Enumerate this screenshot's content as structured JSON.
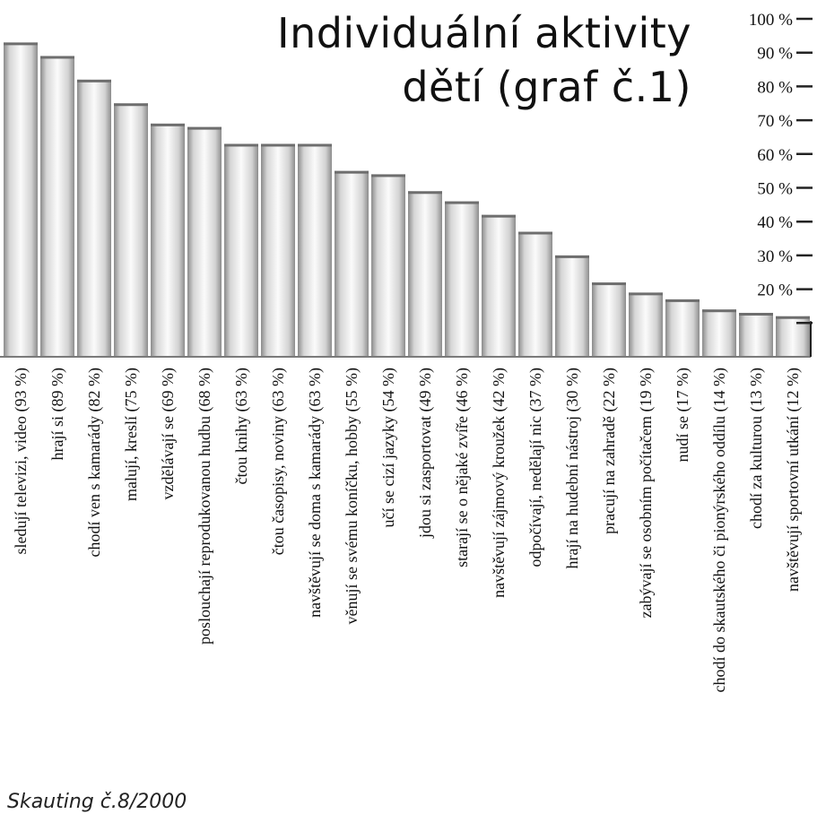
{
  "chart_data": {
    "type": "bar",
    "title_lines": [
      "Individuální aktivity",
      "dětí (graf č.1)"
    ],
    "source": "Skauting č.8/2000",
    "ylim": [
      0,
      100
    ],
    "y_ticks": [
      {
        "value": 100,
        "label": "100 %"
      },
      {
        "value": 90,
        "label": "90 %"
      },
      {
        "value": 80,
        "label": "80 %"
      },
      {
        "value": 70,
        "label": "70 %"
      },
      {
        "value": 60,
        "label": "60 %"
      },
      {
        "value": 50,
        "label": "50 %"
      },
      {
        "value": 40,
        "label": "40 %"
      },
      {
        "value": 30,
        "label": "30 %"
      },
      {
        "value": 20,
        "label": "20 %"
      },
      {
        "value": 10,
        "label": ""
      }
    ],
    "categories": [
      "sledují televizi, video (93 %)",
      "hrají si (89 %)",
      "chodí ven s kamarády (82 %)",
      "malují, kreslí (75 %)",
      "vzdělávají se (69 %)",
      "poslouchají reprodukovanou hudbu (68 %)",
      "čtou knihy (63 %)",
      "čtou časopisy, noviny (63 %)",
      "navštěvují se doma s kamarády (63 %)",
      "věnují se svému koníčku, hobby (55 %)",
      "učí se cizí jazyky (54 %)",
      "jdou si zasportovat (49 %)",
      "starají se o nějaké zvíře (46 %)",
      "navštěvují zájmový kroužek (42 %)",
      "odpočívají, nedělají nic (37 %)",
      "hrají na hudební nástroj (30 %)",
      "pracují na zahradě (22 %)",
      "zabývají se osobním počítačem (19 %)",
      "nudí se (17 %)",
      "chodí do skautského či pionýrského oddílu (14 %)",
      "chodí za kulturou (13 %)",
      "navštěvují sportovní utkání (12 %)"
    ],
    "values": [
      93,
      89,
      82,
      75,
      69,
      68,
      63,
      63,
      63,
      55,
      54,
      49,
      46,
      42,
      37,
      30,
      22,
      19,
      17,
      14,
      13,
      12
    ]
  }
}
